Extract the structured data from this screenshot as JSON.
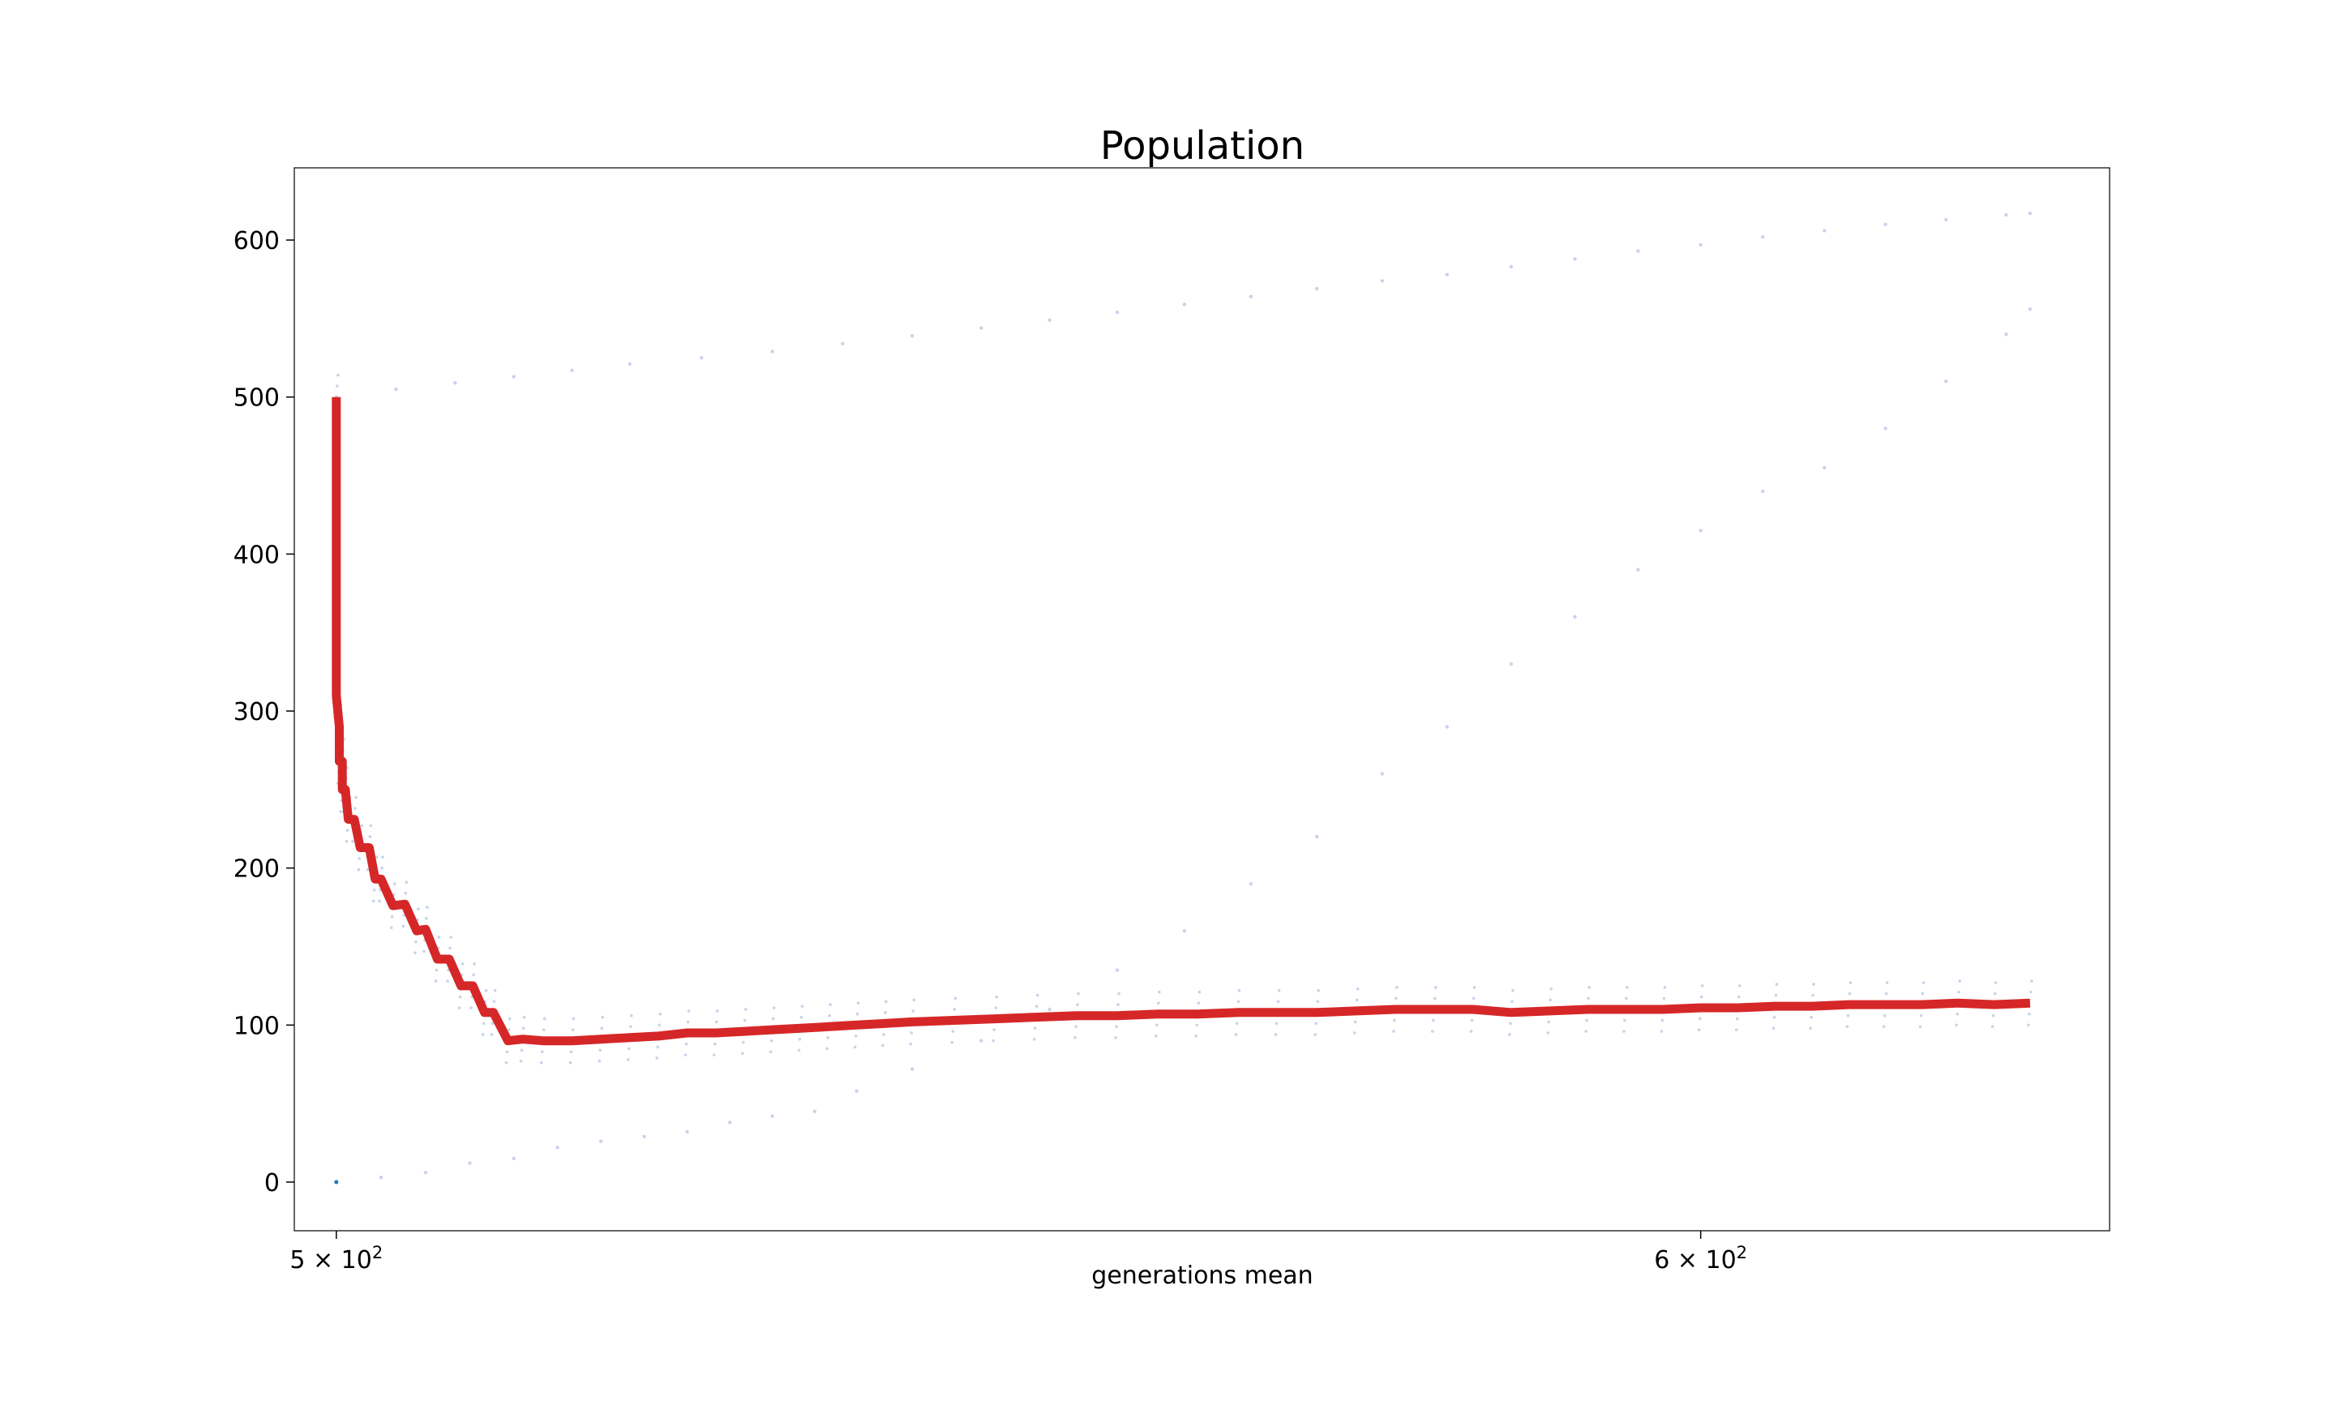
{
  "chart_data": {
    "type": "line",
    "title": "Population",
    "xlabel": "generations mean",
    "ylabel": "",
    "x_scale": "log",
    "xlim": [
      497.2,
      633.7
    ],
    "ylim": [
      -31,
      646
    ],
    "x_ticks": [
      {
        "value": 500,
        "label": "5×10²",
        "base": "5 × 10",
        "exp": "2"
      },
      {
        "value": 600,
        "label": "6×10²",
        "base": "6 × 10",
        "exp": "2"
      }
    ],
    "y_ticks": [
      0,
      100,
      200,
      300,
      400,
      500,
      600
    ],
    "series": [
      {
        "color": "#d62728",
        "x": [
          500.0,
          500.0,
          500.0,
          500.0,
          500.2,
          500.2,
          500.4,
          500.4,
          500.6,
          500.8,
          501.2,
          501.6,
          502.2,
          502.6,
          503.0,
          503.8,
          504.6,
          505.4,
          506.0,
          506.8,
          507.6,
          508.4,
          509.2,
          510.0,
          510.6,
          511.6,
          512.6,
          514.0,
          516.0,
          518.0,
          520.0,
          522.0,
          524.0,
          526.0,
          528.0,
          530.0,
          532.0,
          534.0,
          536.0,
          538.0,
          540.0,
          543.0,
          546.0,
          549.0,
          552.0,
          555.0,
          558.0,
          561.0,
          564.0,
          567.0,
          570.0,
          573.0,
          576.0,
          579.0,
          582.0,
          585.0,
          588.0,
          591.0,
          594.0,
          597.0,
          600.0,
          603.0,
          606.0,
          609.0,
          612.0,
          615.0,
          618.0,
          621.0,
          624.0,
          627.0
        ],
        "y": [
          500,
          420,
          330,
          310,
          290,
          268,
          268,
          250,
          250,
          231,
          231,
          213,
          213,
          193,
          193,
          176,
          177,
          160,
          161,
          142,
          142,
          125,
          125,
          108,
          108,
          90,
          91,
          90,
          90,
          91,
          92,
          93,
          95,
          95,
          96,
          97,
          98,
          99,
          100,
          101,
          102,
          103,
          104,
          105,
          106,
          106,
          107,
          107,
          108,
          108,
          108,
          109,
          110,
          110,
          110,
          108,
          109,
          110,
          110,
          110,
          111,
          111,
          112,
          112,
          113,
          113,
          113,
          114,
          113,
          114
        ]
      },
      {
        "color": "#9aaed8",
        "x": [
          500.0,
          504.0,
          508.0,
          512.0,
          516.0,
          520.0,
          525.0,
          530.0,
          535.0,
          540.0,
          545.0,
          550.0,
          555.0,
          560.0,
          565.0,
          570.0,
          575.0,
          580.0,
          585.0,
          590.0,
          595.0,
          600.0,
          605.0,
          610.0,
          615.0,
          620.0,
          625.0,
          627.0
        ],
        "y": [
          500,
          505,
          509,
          513,
          517,
          521,
          525,
          529,
          534,
          539,
          544,
          549,
          554,
          559,
          564,
          569,
          574,
          578,
          583,
          588,
          593,
          597,
          602,
          606,
          610,
          613,
          616,
          617
        ]
      },
      {
        "color": "#9aaed8",
        "x": [
          500.0,
          503.0,
          506.0,
          509.0,
          512.0,
          515.0,
          518.0,
          521.0,
          524.0,
          527.0,
          530.0,
          533.0,
          536.0,
          540.0,
          545.0,
          550.0,
          555.0,
          560.0,
          565.0,
          570.0,
          575.0,
          580.0,
          585.0,
          590.0,
          595.0,
          600.0,
          605.0,
          610.0,
          615.0,
          620.0,
          625.0,
          627.0
        ],
        "y": [
          0,
          3,
          6,
          12,
          15,
          22,
          26,
          29,
          32,
          38,
          42,
          45,
          58,
          72,
          90,
          110,
          135,
          160,
          190,
          220,
          260,
          290,
          330,
          360,
          390,
          415,
          440,
          455,
          480,
          510,
          540,
          556
        ]
      }
    ]
  }
}
